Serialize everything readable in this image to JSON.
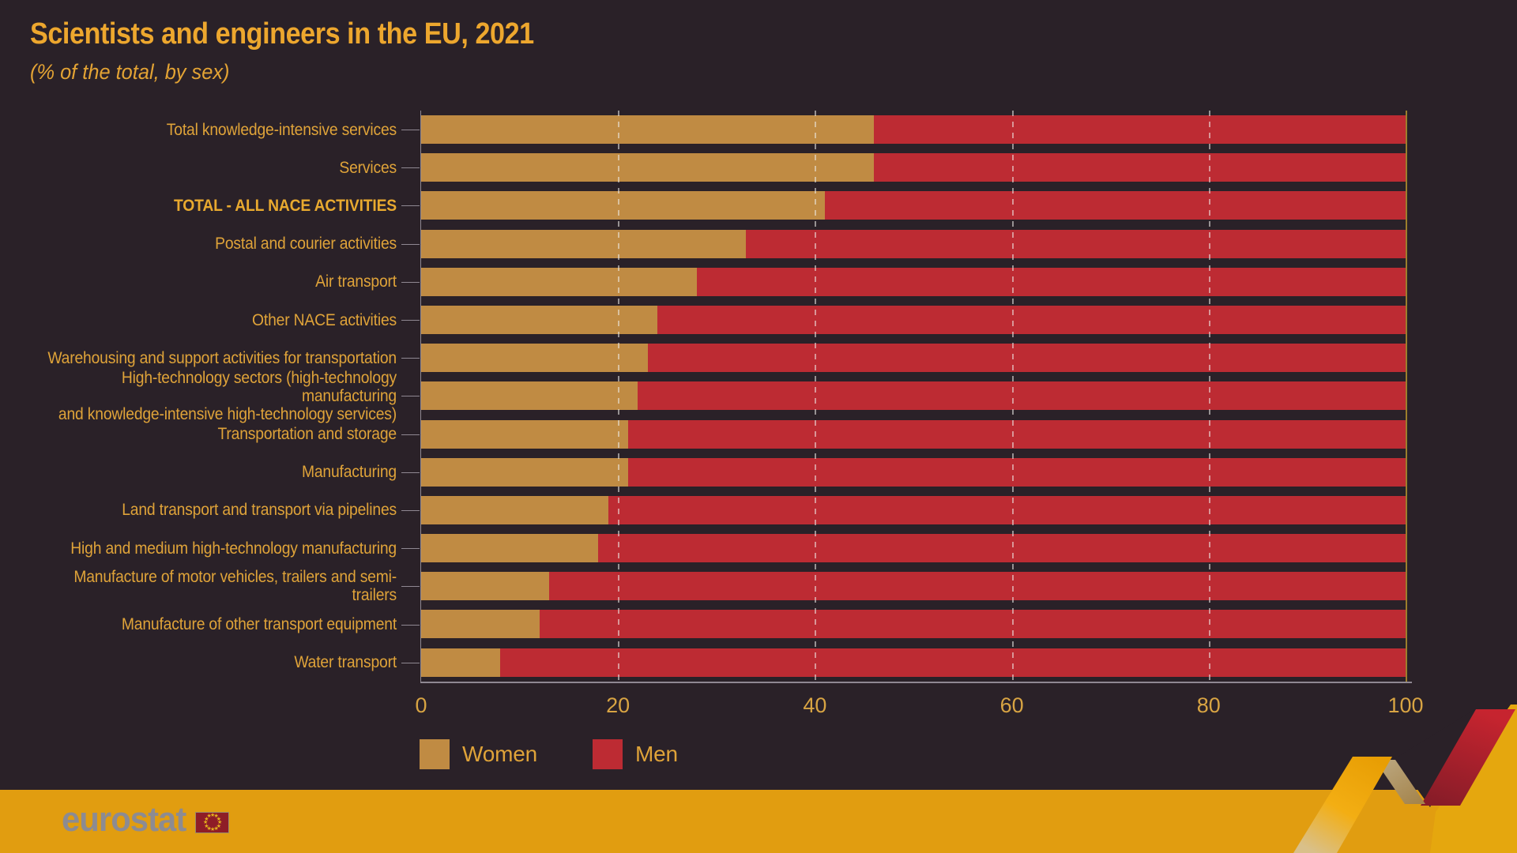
{
  "title": "Scientists and engineers in the EU, 2021",
  "subtitle": "(% of the total, by sex)",
  "chart_data": {
    "type": "bar",
    "orientation": "horizontal",
    "stacked": true,
    "unit": "% of the total",
    "categories": [
      "Total knowledge-intensive services",
      "Services",
      "TOTAL - ALL NACE ACTIVITIES",
      "Postal and courier activities",
      "Air transport",
      "Other NACE activities",
      "Warehousing and support activities for transportation",
      "High-technology sectors (high-technology manufacturing\nand knowledge-intensive high-technology services)",
      "Transportation and storage",
      "Manufacturing",
      "Land transport and transport via pipelines",
      "High and medium high-technology manufacturing",
      "Manufacture of motor vehicles, trailers and semi-trailers",
      "Manufacture of other transport equipment",
      "Water transport"
    ],
    "bold_category": "TOTAL - ALL NACE ACTIVITIES",
    "series": [
      {
        "name": "Women",
        "color": "#C08B43",
        "values": [
          46,
          46,
          41,
          33,
          28,
          24,
          23,
          22,
          21,
          21,
          19,
          18,
          13,
          12,
          8
        ]
      },
      {
        "name": "Men",
        "color": "#BD2B33",
        "values": [
          54,
          54,
          59,
          67,
          72,
          76,
          77,
          78,
          79,
          79,
          81,
          82,
          87,
          88,
          92
        ]
      }
    ],
    "xlim": [
      0,
      100
    ],
    "xticks": [
      0,
      20,
      40,
      60,
      80,
      100
    ],
    "grid": "vertical-dashed",
    "legend_position": "bottom-left"
  },
  "footer": {
    "logo_text": "eurostat"
  },
  "icons": {
    "eu_flag": "circle-of-12-stars"
  },
  "colors": {
    "background": "#2A2128",
    "women_bar": "#C08B43",
    "men_bar": "#BD2B33",
    "title_text": "#EDA72E",
    "label_text": "#DFA339",
    "axis_line": "#8F8892",
    "tick_label": "#D8A443",
    "footer_band": "#E19D10",
    "logo_text": "#8C8B92",
    "flag_red": "#8E1D27",
    "flag_star": "#E5B31C"
  }
}
